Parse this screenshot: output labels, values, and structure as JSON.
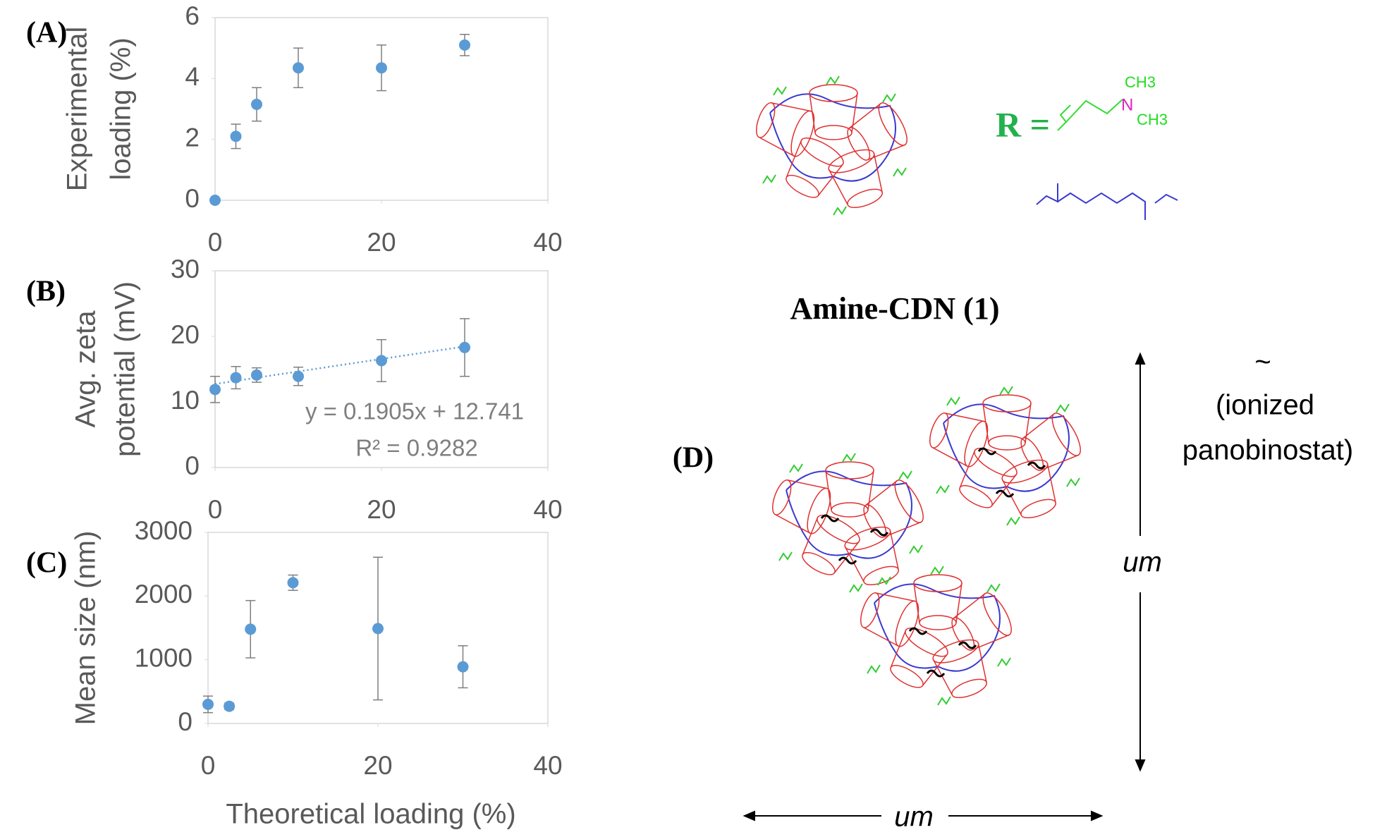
{
  "chart_data": [
    {
      "type": "scatter",
      "panel_label": "(A)",
      "ylabel_lines": [
        "Experimental",
        "loading (%)"
      ],
      "x": [
        0,
        2.5,
        5,
        10,
        20,
        30
      ],
      "values": [
        0,
        2.1,
        3.15,
        4.35,
        4.35,
        5.1
      ],
      "errors": [
        0,
        0.4,
        0.55,
        0.65,
        0.75,
        0.35
      ],
      "color": "#5b9bd5",
      "error_color": "#7f7f7f",
      "xlim": [
        0,
        40
      ],
      "ylim": [
        0,
        6
      ],
      "xticks": [
        0,
        20,
        40
      ],
      "yticks": [
        0,
        2,
        4,
        6
      ]
    },
    {
      "type": "scatter",
      "panel_label": "(B)",
      "ylabel_lines": [
        "Avg. zeta",
        "potential (mV)"
      ],
      "x": [
        0,
        2.5,
        5,
        10,
        20,
        30
      ],
      "values": [
        11.9,
        13.7,
        14.1,
        13.9,
        16.3,
        18.3
      ],
      "errors": [
        2,
        1.7,
        1.1,
        1.4,
        3.2,
        4.4
      ],
      "color": "#5b9bd5",
      "error_color": "#7f7f7f",
      "trendline": {
        "slope": 0.1905,
        "intercept": 12.741,
        "equation": "y = 0.1905x + 12.741",
        "r_squared": "R² = 0.9282"
      },
      "xlim": [
        0,
        40
      ],
      "ylim": [
        0,
        30
      ],
      "xticks": [
        0,
        20,
        40
      ],
      "yticks": [
        0,
        10,
        20,
        30
      ]
    },
    {
      "type": "scatter",
      "panel_label": "(C)",
      "ylabel_lines": [
        "Mean size (nm)"
      ],
      "xlabel": "Theoretical loading (%)",
      "x": [
        0,
        2.5,
        5,
        10,
        20,
        30
      ],
      "values": [
        300,
        270,
        1480,
        2210,
        1490,
        890
      ],
      "errors": [
        130,
        50,
        450,
        120,
        1120,
        330
      ],
      "color": "#5b9bd5",
      "error_color": "#7f7f7f",
      "xlim": [
        0,
        40
      ],
      "ylim": [
        0,
        3000
      ],
      "xticks": [
        0,
        20,
        40
      ],
      "yticks": [
        0,
        1000,
        2000,
        3000
      ]
    }
  ],
  "diagram": {
    "r_label": "R =",
    "n_label": "N",
    "ch3_top": "CH3",
    "ch3_bottom": "CH3",
    "name": "Amine-CDN (1)",
    "panel_label": "(D)",
    "size_vertical": "um",
    "size_horizontal": "um",
    "tilde": "~",
    "drug_line1": "(ionized",
    "drug_line2": "panobinostat)"
  }
}
